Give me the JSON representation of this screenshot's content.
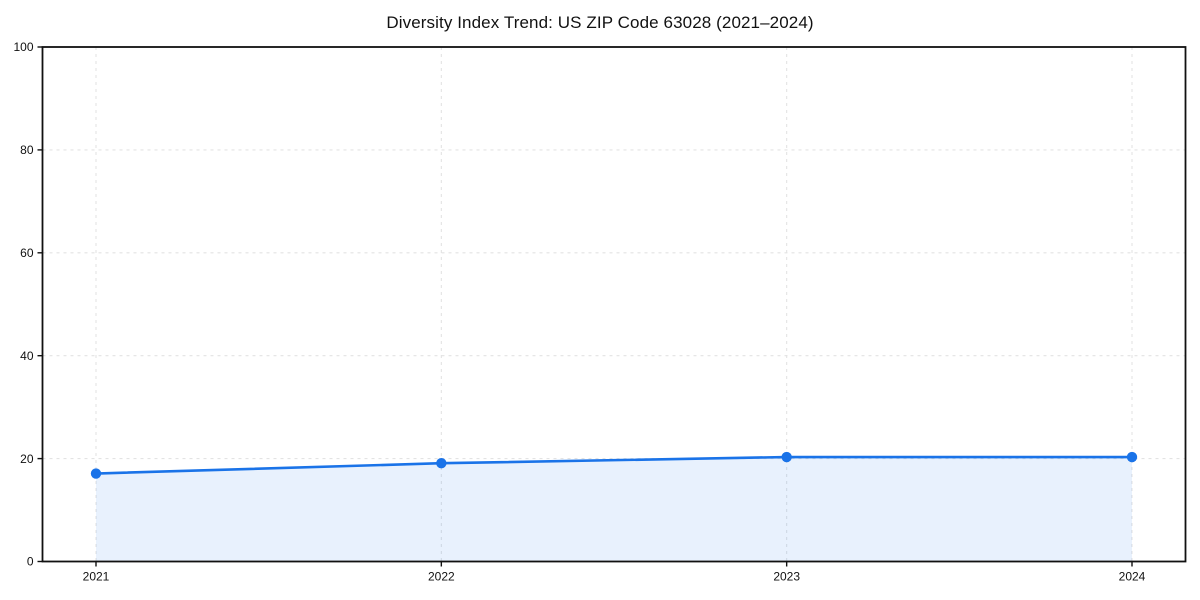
{
  "chart_data": {
    "type": "area",
    "title": "Diversity Index Trend: US ZIP Code 63028 (2021–2024)",
    "categories": [
      "2021",
      "2022",
      "2023",
      "2024"
    ],
    "series": [
      {
        "name": "Diversity Index",
        "values": [
          17.1,
          19.1,
          20.3,
          20.3
        ]
      }
    ],
    "xlabel": "",
    "ylabel": "",
    "ylim": [
      0,
      100
    ],
    "yticks": [
      0,
      20,
      40,
      60,
      80,
      100
    ],
    "grid": "dashed",
    "legend_position": "none",
    "colors": {
      "line": "#1a73e8",
      "marker": "#1a73e8",
      "fill": "#1a73e8",
      "fill_opacity": 0.1,
      "grid": "#e3e3e3",
      "axis": "#111111",
      "text": "#111111",
      "background": "#ffffff"
    }
  }
}
